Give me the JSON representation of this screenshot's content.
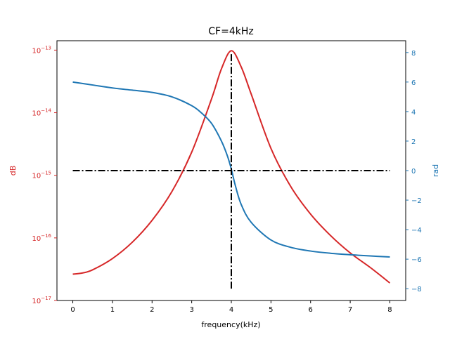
{
  "chart_data": {
    "type": "line",
    "title": "CF=4kHz",
    "xlabel": "frequency(kHz)",
    "ylabel_left": "dB",
    "ylabel_right": "rad",
    "xlim": [
      -0.4,
      8.4
    ],
    "ylim_left_log10": [
      -17.0,
      -12.85
    ],
    "ylim_right": [
      -8.8,
      8.8
    ],
    "y_left_scale": "log",
    "grid": false,
    "colors": {
      "left": "#d62728",
      "right": "#1f77b4",
      "markers": "#000000"
    },
    "x_ticks": [
      "0",
      "1",
      "2",
      "3",
      "4",
      "5",
      "6",
      "7",
      "8"
    ],
    "x_tick_values": [
      0,
      1,
      2,
      3,
      4,
      5,
      6,
      7,
      8
    ],
    "y_left_ticks": [
      {
        "base": "10",
        "exp": "−17",
        "log": -17
      },
      {
        "base": "10",
        "exp": "−16",
        "log": -16
      },
      {
        "base": "10",
        "exp": "−15",
        "log": -15
      },
      {
        "base": "10",
        "exp": "−14",
        "log": -14
      },
      {
        "base": "10",
        "exp": "−13",
        "log": -13
      }
    ],
    "y_right_ticks": [
      "−8",
      "−6",
      "−4",
      "−2",
      "0",
      "2",
      "4",
      "6",
      "8"
    ],
    "y_right_tick_values": [
      -8,
      -6,
      -4,
      -2,
      0,
      2,
      4,
      6,
      8
    ],
    "series": [
      {
        "axis": "left",
        "color": "#d62728",
        "x": [
          0,
          0.25,
          0.5,
          1,
          1.5,
          2,
          2.5,
          3,
          3.5,
          3.75,
          4,
          4.25,
          4.5,
          5,
          5.5,
          6,
          6.5,
          7,
          7.5,
          8
        ],
        "y_log10": [
          -16.58,
          -16.56,
          -16.51,
          -16.33,
          -16.07,
          -15.72,
          -15.26,
          -14.63,
          -13.78,
          -13.3,
          -13.01,
          -13.27,
          -13.7,
          -14.57,
          -15.18,
          -15.62,
          -15.96,
          -16.24,
          -16.47,
          -16.72
        ]
      },
      {
        "axis": "right",
        "color": "#1f77b4",
        "x": [
          0,
          0.5,
          1,
          1.5,
          2,
          2.5,
          3,
          3.25,
          3.5,
          3.75,
          3.9,
          4,
          4.1,
          4.25,
          4.5,
          5,
          5.5,
          6,
          6.5,
          7,
          7.5,
          8
        ],
        "y": [
          6.0,
          5.8,
          5.6,
          5.45,
          5.3,
          5.0,
          4.4,
          3.9,
          3.2,
          2.0,
          1.0,
          0.1,
          -1.0,
          -2.3,
          -3.5,
          -4.7,
          -5.2,
          -5.45,
          -5.6,
          -5.7,
          -5.78,
          -5.85
        ]
      }
    ],
    "reference_lines": [
      {
        "orientation": "horizontal",
        "axis": "right",
        "y": 0,
        "x_from": 0,
        "x_to": 8,
        "style": "dash-dot",
        "color": "#000000"
      },
      {
        "orientation": "vertical",
        "axis": "right",
        "x": 4,
        "y_from": -8,
        "y_to": 8,
        "style": "dash-dot",
        "color": "#000000"
      }
    ]
  }
}
